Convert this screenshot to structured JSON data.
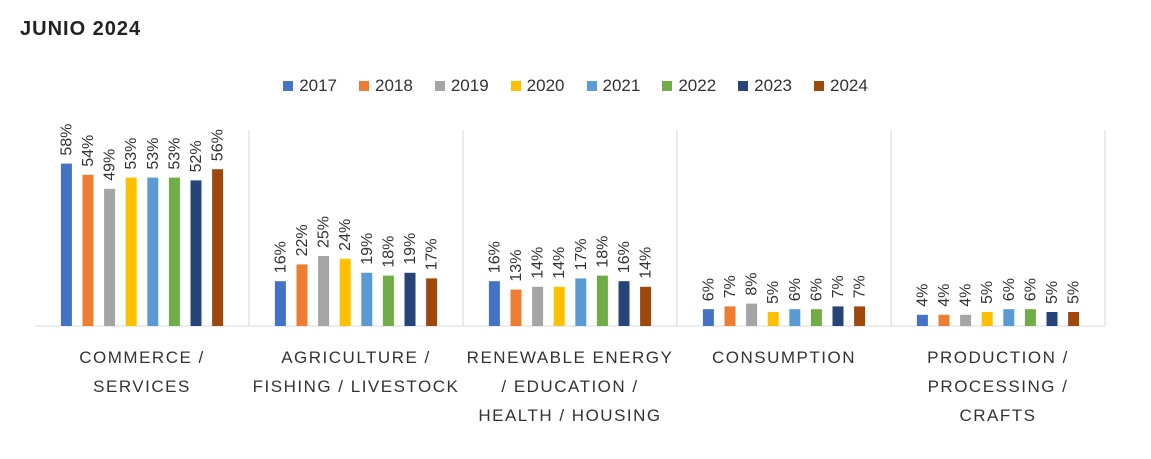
{
  "chart_data": {
    "type": "bar",
    "title": "JUNIO 2024",
    "categories": [
      [
        "COMMERCE /",
        "SERVICES"
      ],
      [
        "AGRICULTURE /",
        "FISHING / LIVESTOCK"
      ],
      [
        "RENEWABLE ENERGY",
        "/ EDUCATION /",
        "HEALTH / HOUSING"
      ],
      [
        "CONSUMPTION"
      ],
      [
        "PRODUCTION /",
        "PROCESSING /",
        "CRAFTS"
      ]
    ],
    "series": [
      {
        "name": "2017",
        "color": "#4472C4",
        "values": [
          58,
          16,
          16,
          6,
          4
        ]
      },
      {
        "name": "2018",
        "color": "#ED7D31",
        "values": [
          54,
          22,
          13,
          7,
          4
        ]
      },
      {
        "name": "2019",
        "color": "#A5A5A5",
        "values": [
          49,
          25,
          14,
          8,
          4
        ]
      },
      {
        "name": "2020",
        "color": "#FFC000",
        "values": [
          53,
          24,
          14,
          5,
          5
        ]
      },
      {
        "name": "2021",
        "color": "#5B9BD5",
        "values": [
          53,
          19,
          17,
          6,
          6
        ]
      },
      {
        "name": "2022",
        "color": "#70AD47",
        "values": [
          53,
          18,
          18,
          6,
          6
        ]
      },
      {
        "name": "2023",
        "color": "#264478",
        "values": [
          52,
          19,
          16,
          7,
          5
        ]
      },
      {
        "name": "2024",
        "color": "#9E480E",
        "values": [
          56,
          17,
          14,
          7,
          5
        ]
      }
    ],
    "value_suffix": "%",
    "legend_position": "top",
    "grid": false,
    "category_separators": true,
    "ylim": [
      0,
      60
    ]
  }
}
